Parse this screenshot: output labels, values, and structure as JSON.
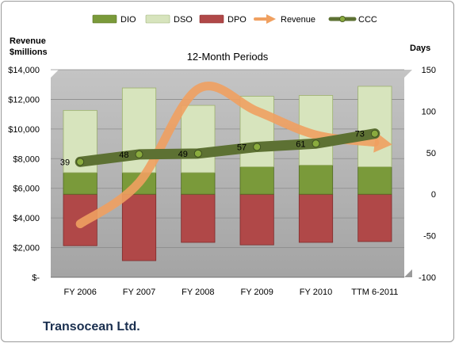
{
  "chart_data": {
    "type": "bar",
    "title": "12-Month Periods",
    "company": "Transocean Ltd.",
    "left_axis_label": [
      "Revenue",
      "$millions"
    ],
    "right_axis_label": "Days",
    "categories": [
      "FY 2006",
      "FY 2007",
      "FY 2008",
      "FY 2009",
      "FY 2010",
      "TTM 6-2011"
    ],
    "left_axis": {
      "range": [
        0,
        14000
      ],
      "ticks": [
        0,
        2000,
        4000,
        6000,
        8000,
        10000,
        12000,
        14000
      ],
      "tick_labels": [
        "$-",
        "$2,000",
        "$4,000",
        "$6,000",
        "$8,000",
        "$10,000",
        "$12,000",
        "$14,000"
      ]
    },
    "right_axis": {
      "range": [
        -100,
        150
      ],
      "ticks": [
        -100,
        -50,
        0,
        50,
        100,
        150
      ],
      "tick_labels": [
        "-100",
        "-50",
        "0",
        "50",
        "100",
        "150"
      ]
    },
    "legend": {
      "position": "top",
      "entries": [
        {
          "name": "DIO",
          "kind": "bar",
          "color": "#7a9a3a"
        },
        {
          "name": "DSO",
          "kind": "bar",
          "color": "#d7e4bd"
        },
        {
          "name": "DPO",
          "kind": "bar",
          "color": "#b04848"
        },
        {
          "name": "Revenue",
          "kind": "arrow",
          "color": "#f0a060"
        },
        {
          "name": "CCC",
          "kind": "line",
          "color": "#5d7133"
        }
      ]
    },
    "series": [
      {
        "name": "DPO",
        "axis": "right",
        "values": [
          -62,
          -80,
          -58,
          -61,
          -58,
          -57
        ],
        "color": "#b04848"
      },
      {
        "name": "DIO",
        "axis": "right",
        "values": [
          26,
          26,
          26,
          33,
          35,
          33
        ],
        "color": "#7a9a3a"
      },
      {
        "name": "DSO",
        "axis": "right",
        "values": [
          75,
          102,
          81,
          85,
          84,
          97
        ],
        "color": "#d7e4bd"
      },
      {
        "name": "CCC",
        "axis": "right",
        "values": [
          39,
          48,
          49,
          57,
          61,
          73
        ],
        "labels": [
          "39",
          "48",
          "49",
          "57",
          "61",
          "73"
        ],
        "color": "#4f6228"
      },
      {
        "name": "Revenue",
        "axis": "left",
        "values": [
          3600,
          6400,
          12700,
          11200,
          9600,
          9100
        ],
        "color": "#f0a060"
      }
    ],
    "grid": true,
    "plot_background": "#b3b3b3"
  }
}
